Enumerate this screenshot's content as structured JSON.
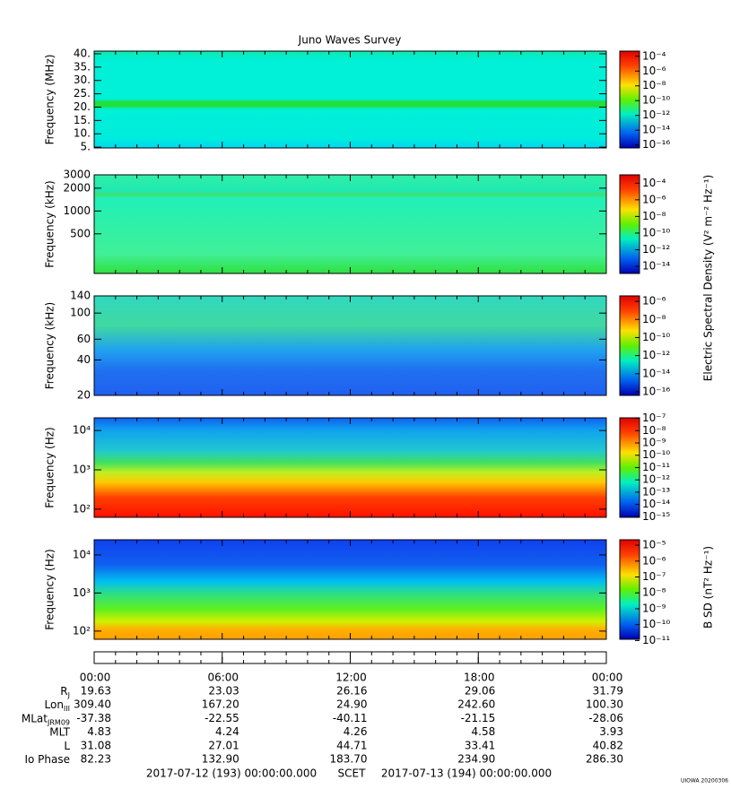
{
  "title": "Juno Waves Survey",
  "electric_label": "Electric Spectral Density (V² m⁻² Hz⁻¹)",
  "magnetic_label": "B SD (nT² Hz⁻¹)",
  "chart_data": [
    {
      "type": "spectrogram",
      "ylabel": "Frequency (MHz)",
      "ylim": [
        4.7,
        41
      ],
      "log": false,
      "yticks": [
        {
          "value": 5,
          "label": "5."
        },
        {
          "value": 10,
          "label": "10."
        },
        {
          "value": 15,
          "label": "15."
        },
        {
          "value": 20,
          "label": "20."
        },
        {
          "value": 25,
          "label": "25."
        },
        {
          "value": 30,
          "label": "30."
        },
        {
          "value": 35,
          "label": "35."
        },
        {
          "value": 40,
          "label": "40."
        }
      ],
      "zlim": [
        4e-17,
        0.0005
      ],
      "zticks": [
        {
          "value": 0.0001,
          "label": "10⁻⁴"
        },
        {
          "value": 1e-06,
          "label": "10⁻⁶"
        },
        {
          "value": 1e-08,
          "label": "10⁻⁸"
        },
        {
          "value": 1e-10,
          "label": "10⁻¹⁰"
        },
        {
          "value": 1e-12,
          "label": "10⁻¹²"
        },
        {
          "value": 1e-14,
          "label": "10⁻¹⁴"
        },
        {
          "value": 1e-16,
          "label": "10⁻¹⁶"
        }
      ]
    },
    {
      "type": "spectrogram",
      "ylabel": "Frequency (kHz)",
      "ylim": [
        150,
        3000
      ],
      "log": true,
      "yticks": [
        500,
        1000,
        2000,
        3000
      ],
      "zlim": [
        1.4e-15,
        0.001
      ],
      "zticks": [
        {
          "value": 0.0001,
          "label": "10⁻⁴"
        },
        {
          "value": 1e-06,
          "label": "10⁻⁶"
        },
        {
          "value": 1e-08,
          "label": "10⁻⁸"
        },
        {
          "value": 1e-10,
          "label": "10⁻¹⁰"
        },
        {
          "value": 1e-12,
          "label": "10⁻¹²"
        },
        {
          "value": 1e-14,
          "label": "10⁻¹⁴"
        }
      ]
    },
    {
      "type": "spectrogram",
      "ylabel": "Frequency (kHz)",
      "ylim": [
        20,
        140
      ],
      "log": true,
      "yticks": [
        20,
        40,
        60,
        100,
        140
      ],
      "zlim": [
        4e-17,
        4e-06
      ],
      "zticks": [
        {
          "value": 1e-06,
          "label": "10⁻⁶"
        },
        {
          "value": 1e-08,
          "label": "10⁻⁸"
        },
        {
          "value": 1e-10,
          "label": "10⁻¹⁰"
        },
        {
          "value": 1e-12,
          "label": "10⁻¹²"
        },
        {
          "value": 1e-14,
          "label": "10⁻¹⁴"
        },
        {
          "value": 1e-16,
          "label": "10⁻¹⁶"
        }
      ]
    },
    {
      "type": "spectrogram",
      "ylabel": "Frequency (Hz)",
      "ylim": [
        62,
        21000
      ],
      "log": true,
      "yticks": [
        {
          "value": 100,
          "label": "10²"
        },
        {
          "value": 1000,
          "label": "10³"
        },
        {
          "value": 10000,
          "label": "10⁴"
        }
      ],
      "zlim": [
        9e-16,
        1.1e-07
      ],
      "zticks": [
        {
          "value": 1e-07,
          "label": "10⁻⁷"
        },
        {
          "value": 1e-08,
          "label": "10⁻⁸"
        },
        {
          "value": 1e-09,
          "label": "10⁻⁹"
        },
        {
          "value": 1e-10,
          "label": "10⁻¹⁰"
        },
        {
          "value": 1e-11,
          "label": "10⁻¹¹"
        },
        {
          "value": 1e-12,
          "label": "10⁻¹²"
        },
        {
          "value": 1e-13,
          "label": "10⁻¹³"
        },
        {
          "value": 1e-14,
          "label": "10⁻¹⁴"
        },
        {
          "value": 1e-15,
          "label": "10⁻¹⁵"
        }
      ]
    },
    {
      "type": "spectrogram",
      "ylabel": "Frequency (Hz)",
      "ylim": [
        61,
        25000
      ],
      "log": true,
      "yticks": [
        {
          "value": 100,
          "label": "10²"
        },
        {
          "value": 1000,
          "label": "10³"
        },
        {
          "value": 10000,
          "label": "10⁴"
        }
      ],
      "zlim": [
        1.2e-11,
        2.2e-05
      ],
      "zticks": [
        {
          "value": 1e-05,
          "label": "10⁻⁵"
        },
        {
          "value": 1e-06,
          "label": "10⁻⁶"
        },
        {
          "value": 1e-07,
          "label": "10⁻⁷"
        },
        {
          "value": 1e-08,
          "label": "10⁻⁸"
        },
        {
          "value": 1e-09,
          "label": "10⁻⁹"
        },
        {
          "value": 1e-10,
          "label": "10⁻¹⁰"
        },
        {
          "value": 1e-11,
          "label": "10⁻¹¹"
        }
      ]
    }
  ],
  "time_axis": {
    "xlim": [
      0,
      24
    ],
    "xticks": [
      {
        "value": 0,
        "label": "00:00"
      },
      {
        "value": 6,
        "label": "06:00"
      },
      {
        "value": 12,
        "label": "12:00"
      },
      {
        "value": 18,
        "label": "18:00"
      },
      {
        "value": 24,
        "label": "00:00"
      }
    ]
  },
  "ephemeris": [
    {
      "label": "R",
      "sub": "J",
      "values": [
        "19.63",
        "23.03",
        "26.16",
        "29.06",
        "31.79"
      ]
    },
    {
      "label": "Lon",
      "sub": "III",
      "values": [
        "309.40",
        "167.20",
        "24.90",
        "242.60",
        "100.30"
      ]
    },
    {
      "label": "MLat",
      "sub": "JRM09",
      "values": [
        "-37.38",
        "-22.55",
        "-40.11",
        "-21.15",
        "-28.06"
      ]
    },
    {
      "label": "MLT",
      "values": [
        "4.83",
        "4.24",
        "4.26",
        "4.58",
        "3.93"
      ]
    },
    {
      "label": "L",
      "values": [
        "31.08",
        "27.01",
        "44.71",
        "33.41",
        "40.82"
      ]
    },
    {
      "label": "Io Phase",
      "values": [
        "82.23",
        "132.90",
        "183.70",
        "234.90",
        "286.30"
      ]
    }
  ],
  "footer": {
    "start": "2017-07-12 (193) 00:00:00.000",
    "scet": "SCET",
    "end": "2017-07-13 (194) 00:00:00.000",
    "stamp": "UIOWA 20200306"
  }
}
